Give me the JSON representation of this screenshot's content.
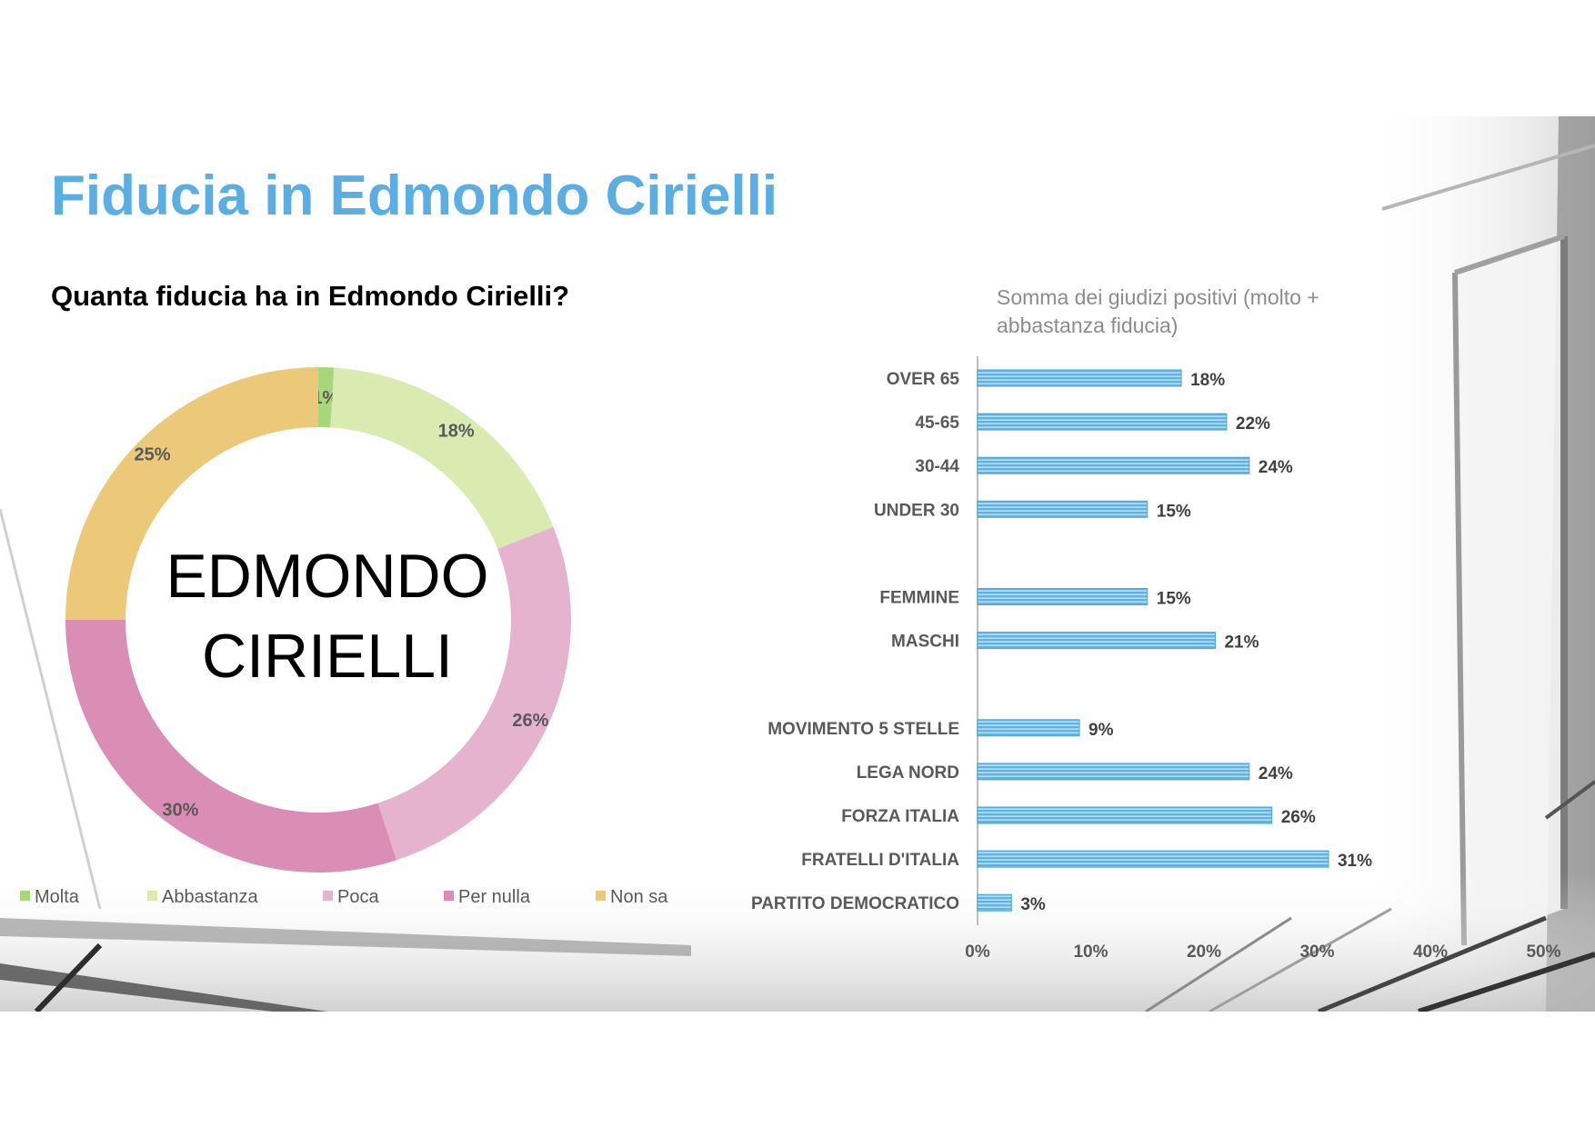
{
  "slide": {
    "title": "Fiducia in Edmondo Cirielli",
    "subtitle": "Quanta fiducia ha in Edmondo Cirielli?"
  },
  "colors": {
    "title": "#5aaee3",
    "bar": "#5ab4e5",
    "bar_stripe": "#d6eefa"
  },
  "chart_data": [
    {
      "type": "pie",
      "variant": "donut",
      "center_label": [
        "EDMONDO",
        "CIRIELLI"
      ],
      "categories": [
        "Molta",
        "Abbastanza",
        "Poca",
        "Per nulla",
        "Non sa"
      ],
      "values": [
        1,
        18,
        26,
        30,
        25
      ],
      "value_labels": [
        "1%",
        "18%",
        "26%",
        "30%",
        "25%"
      ],
      "colors": [
        "#a9d67a",
        "#d9ebb0",
        "#e6b3cf",
        "#da8db5",
        "#ebc978"
      ],
      "legend": "bottom"
    },
    {
      "type": "bar",
      "orientation": "horizontal",
      "title": "Somma dei giudizi positivi (molto + abbastanza fiducia)",
      "categories": [
        "OVER 65",
        "45-65",
        "30-44",
        "UNDER 30",
        "",
        "FEMMINE",
        "MASCHI",
        "",
        "MOVIMENTO 5 STELLE",
        "LEGA NORD",
        "FORZA ITALIA",
        "FRATELLI D'ITALIA",
        "PARTITO DEMOCRATICO"
      ],
      "values": [
        18,
        22,
        24,
        15,
        null,
        15,
        21,
        null,
        9,
        24,
        26,
        31,
        3
      ],
      "value_labels": [
        "18%",
        "22%",
        "24%",
        "15%",
        "",
        "15%",
        "21%",
        "",
        "9%",
        "24%",
        "26%",
        "31%",
        "3%"
      ],
      "xlim": [
        0,
        50
      ],
      "xticks": [
        "0%",
        "10%",
        "20%",
        "30%",
        "40%",
        "50%"
      ],
      "grid": false
    }
  ]
}
